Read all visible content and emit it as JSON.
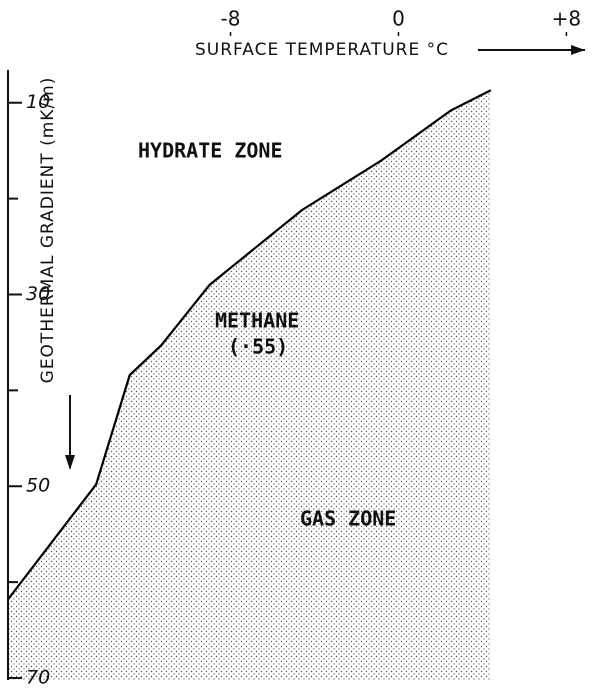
{
  "chart_data": {
    "type": "area",
    "xlabel": "SURFACE TEMPERATURE °C",
    "ylabel": "GEOTHERMAL GRADIENT (mK/m)",
    "annotations": [
      "HYDRATE ZONE",
      "METHANE",
      "(·55)",
      "GAS ZONE"
    ],
    "x": [
      -18.6,
      -14.4,
      -12.8,
      -11.3,
      -9.0,
      -4.6,
      -0.8,
      2.5,
      4.4
    ],
    "values": [
      61.8,
      49.8,
      38.4,
      35.3,
      29.0,
      21.2,
      16.0,
      10.8,
      8.7
    ],
    "color": "#000000",
    "xlim": [
      -18.6,
      8.6
    ],
    "xticks": [
      -8,
      0,
      {
        "value": 8,
        "label": "+8"
      }
    ],
    "ylim": [
      4.5,
      70
    ],
    "yticks": [
      10,
      30,
      50,
      70
    ],
    "minor_yticks": [
      20,
      40,
      60
    ],
    "y_inverted": true
  }
}
